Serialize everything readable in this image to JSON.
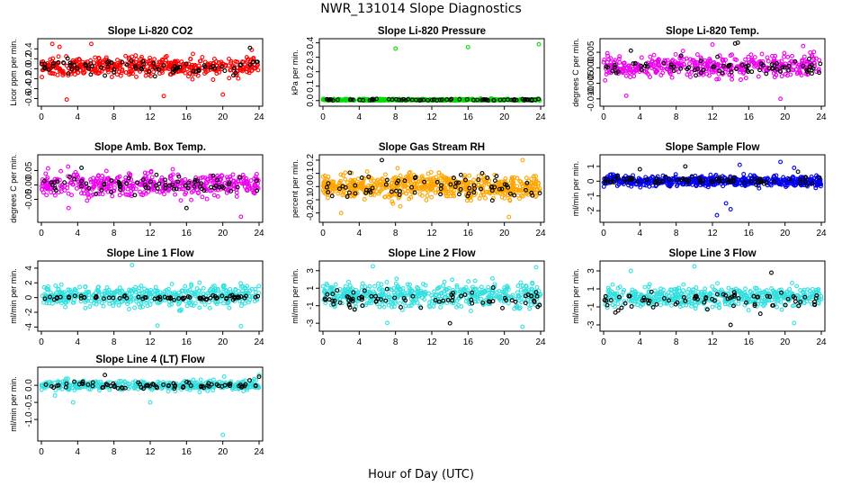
{
  "figure": {
    "title": "NWR_131014  Slope Diagnostics",
    "xlabel": "Hour of Day (UTC)"
  },
  "chart_data": [
    {
      "type": "scatter",
      "title": "Slope Li-820 CO2",
      "ylabel": "Licor ppm per min.",
      "xlim": [
        0,
        24
      ],
      "ylim": [
        -0.7,
        0.55
      ],
      "xticks": [
        "0",
        "4",
        "8",
        "12",
        "16",
        "20",
        "24"
      ],
      "yticks": [
        "-0.6",
        "-0.4",
        "-0.2",
        "0.0",
        "0.2",
        "0.4"
      ],
      "series": [
        {
          "color": "#ff0000",
          "center": 0.04,
          "spread": 0.17,
          "n": 480,
          "outliers": [
            [
              1.2,
              0.5
            ],
            [
              2.0,
              0.44
            ],
            [
              2.8,
              -0.62
            ],
            [
              5.5,
              0.5
            ],
            [
              13.5,
              -0.55
            ],
            [
              20.0,
              -0.52
            ],
            [
              23.2,
              0.38
            ]
          ]
        },
        {
          "color": "#000000",
          "center": 0.03,
          "spread": 0.14,
          "n": 75,
          "outliers": [
            [
              23.0,
              0.42
            ]
          ]
        }
      ]
    },
    {
      "type": "scatter",
      "title": "Slope Li-820 Pressure",
      "ylabel": "kPa per min.",
      "xlim": [
        0,
        24
      ],
      "ylim": [
        -0.02,
        0.41
      ],
      "xticks": [
        "0",
        "4",
        "8",
        "12",
        "16",
        "20",
        "24"
      ],
      "yticks": [
        "0.0",
        "0.1",
        "0.2",
        "0.3",
        "0.4"
      ],
      "series": [
        {
          "color": "#00dd00",
          "center": 0.005,
          "spread": 0.006,
          "n": 480,
          "outliers": [
            [
              8.0,
              0.36
            ],
            [
              16.0,
              0.37
            ],
            [
              23.8,
              0.39
            ]
          ]
        },
        {
          "color": "#000000",
          "center": 0.005,
          "spread": 0.005,
          "n": 75,
          "outliers": []
        }
      ]
    },
    {
      "type": "scatter",
      "title": "Slope Li-820 Temp.",
      "ylabel": "degrees C per min.",
      "xlim": [
        0,
        24
      ],
      "ylim": [
        -0.0115,
        0.0085
      ],
      "xticks": [
        "0",
        "4",
        "8",
        "12",
        "16",
        "20",
        "24"
      ],
      "yticks": [
        "-0.010",
        "-0.005",
        "0.000",
        "0.005"
      ],
      "series": [
        {
          "color": "#ee00ee",
          "center": 0.0005,
          "spread": 0.0032,
          "n": 430,
          "outliers": [
            [
              2.5,
              -0.009
            ],
            [
              12.0,
              0.0075
            ],
            [
              19.5,
              -0.01
            ],
            [
              22.0,
              0.007
            ]
          ]
        },
        {
          "color": "#000000",
          "center": 0.0005,
          "spread": 0.0025,
          "n": 75,
          "outliers": [
            [
              3.0,
              0.0055
            ],
            [
              14.5,
              0.0078
            ],
            [
              14.8,
              0.0081
            ]
          ]
        }
      ]
    },
    {
      "type": "scatter",
      "title": "Slope Amb. Box Temp.",
      "ylabel": "degrees C per min.",
      "xlim": [
        0,
        24
      ],
      "ylim": [
        -0.12,
        0.095
      ],
      "xticks": [
        "0",
        "4",
        "8",
        "12",
        "16",
        "20",
        "24"
      ],
      "yticks": [
        "-0.05",
        "0.00",
        "0.05"
      ],
      "series": [
        {
          "color": "#ee00ee",
          "center": 0.0,
          "spread": 0.035,
          "n": 460,
          "outliers": [
            [
              3.0,
              -0.08
            ],
            [
              22.0,
              -0.11
            ]
          ]
        },
        {
          "color": "#000000",
          "center": 0.0,
          "spread": 0.03,
          "n": 75,
          "outliers": [
            [
              16.0,
              -0.08
            ]
          ]
        }
      ]
    },
    {
      "type": "scatter",
      "title": "Slope Gas Stream RH",
      "ylabel": "percent per min.",
      "xlim": [
        0,
        24
      ],
      "ylim": [
        -0.25,
        0.22
      ],
      "xticks": [
        "0",
        "4",
        "8",
        "12",
        "16",
        "20",
        "24"
      ],
      "yticks": [
        "-0.2",
        "-0.1",
        "0.0",
        "0.1",
        "0.2"
      ],
      "series": [
        {
          "color": "#ffa500",
          "center": 0.0,
          "spread": 0.08,
          "n": 650,
          "outliers": [
            [
              2.0,
              -0.2
            ],
            [
              20.5,
              -0.23
            ],
            [
              22.0,
              0.2
            ]
          ]
        },
        {
          "color": "#000000",
          "center": 0.0,
          "spread": 0.07,
          "n": 75,
          "outliers": [
            [
              6.5,
              0.2
            ]
          ]
        }
      ]
    },
    {
      "type": "scatter",
      "title": "Slope Sample Flow",
      "ylabel": "ml/min per min.",
      "xlim": [
        0,
        24
      ],
      "ylim": [
        -2.6,
        1.6
      ],
      "xticks": [
        "0",
        "4",
        "8",
        "12",
        "16",
        "20",
        "24"
      ],
      "yticks": [
        "-2",
        "-1",
        "0",
        "1"
      ],
      "series": [
        {
          "color": "#0000ee",
          "center": 0.0,
          "spread": 0.3,
          "n": 600,
          "outliers": [
            [
              12.5,
              -2.3
            ],
            [
              13.5,
              -1.5
            ],
            [
              15.0,
              1.1
            ],
            [
              19.5,
              1.3
            ],
            [
              21.0,
              0.9
            ],
            [
              14.0,
              -1.9
            ]
          ]
        },
        {
          "color": "#000000",
          "center": 0.05,
          "spread": 0.25,
          "n": 75,
          "outliers": [
            [
              9.0,
              1.0
            ],
            [
              4.0,
              0.8
            ]
          ]
        }
      ]
    },
    {
      "type": "scatter",
      "title": "Slope Line 1 Flow",
      "ylabel": "ml/min per min.",
      "xlim": [
        0,
        24
      ],
      "ylim": [
        -4.2,
        4.6
      ],
      "xticks": [
        "0",
        "4",
        "8",
        "12",
        "16",
        "20",
        "24"
      ],
      "yticks": [
        "-4",
        "-2",
        "0",
        "2",
        "4"
      ],
      "series": [
        {
          "color": "#33e0e0",
          "center": 0.2,
          "spread": 1.3,
          "n": 470,
          "outliers": [
            [
              10.0,
              4.4
            ],
            [
              12.8,
              -3.8
            ],
            [
              22.0,
              -3.9
            ]
          ]
        },
        {
          "color": "#000000",
          "center": 0.0,
          "spread": 0.25,
          "n": 75,
          "outliers": []
        }
      ]
    },
    {
      "type": "scatter",
      "title": "Slope Line 2 Flow",
      "ylabel": "ml/min per min.",
      "xlim": [
        0,
        24
      ],
      "ylim": [
        -3.6,
        3.8
      ],
      "xticks": [
        "0",
        "4",
        "8",
        "12",
        "16",
        "20",
        "24"
      ],
      "yticks": [
        "-3",
        "-1",
        "1",
        "3"
      ],
      "series": [
        {
          "color": "#33e0e0",
          "center": 0.2,
          "spread": 1.2,
          "n": 520,
          "outliers": [
            [
              5.5,
              3.5
            ],
            [
              23.5,
              3.4
            ],
            [
              22.0,
              -3.4
            ]
          ]
        },
        {
          "color": "#000000",
          "center": -0.2,
          "spread": 1.0,
          "n": 75,
          "outliers": [
            [
              14.0,
              -3.0
            ]
          ]
        }
      ]
    },
    {
      "type": "scatter",
      "title": "Slope Line 3 Flow",
      "ylabel": "ml/min per min.",
      "xlim": [
        0,
        24
      ],
      "ylim": [
        -3.4,
        3.8
      ],
      "xticks": [
        "0",
        "4",
        "8",
        "12",
        "16",
        "20",
        "24"
      ],
      "yticks": [
        "-3",
        "-1",
        "1",
        "3"
      ],
      "series": [
        {
          "color": "#33e0e0",
          "center": 0.1,
          "spread": 1.0,
          "n": 500,
          "outliers": [
            [
              10.0,
              3.5
            ],
            [
              3.0,
              3.0
            ],
            [
              21.0,
              -2.8
            ]
          ]
        },
        {
          "color": "#000000",
          "center": -0.3,
          "spread": 1.0,
          "n": 75,
          "outliers": [
            [
              18.5,
              2.8
            ],
            [
              14.0,
              -3.0
            ]
          ]
        }
      ]
    },
    {
      "type": "scatter",
      "title": "Slope Line 4 (LT) Flow",
      "ylabel": "ml/min per min.",
      "xlim": [
        0,
        24
      ],
      "ylim": [
        -1.55,
        0.45
      ],
      "xticks": [
        "0",
        "4",
        "8",
        "12",
        "16",
        "20",
        "24"
      ],
      "yticks": [
        "-1.0",
        "-0.5",
        "0.0"
      ],
      "series": [
        {
          "color": "#33e0e0",
          "center": 0.0,
          "spread": 0.12,
          "n": 430,
          "outliers": [
            [
              1.5,
              -0.3
            ],
            [
              3.5,
              -0.5
            ],
            [
              12.0,
              -0.5
            ],
            [
              20.0,
              -1.45
            ],
            [
              24.0,
              0.3
            ]
          ]
        },
        {
          "color": "#000000",
          "center": 0.0,
          "spread": 0.08,
          "n": 75,
          "outliers": [
            [
              7.0,
              0.3
            ],
            [
              24.0,
              0.25
            ]
          ]
        }
      ]
    }
  ]
}
